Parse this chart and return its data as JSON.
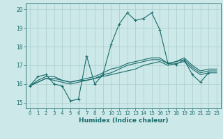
{
  "xlabel": "Humidex (Indice chaleur)",
  "background_color": "#cce8e8",
  "grid_color": "#aacccc",
  "line_color": "#1a6b6b",
  "xlim": [
    -0.5,
    23.5
  ],
  "ylim": [
    14.7,
    20.3
  ],
  "yticks": [
    15,
    16,
    17,
    18,
    19,
    20
  ],
  "xticks": [
    0,
    1,
    2,
    3,
    4,
    5,
    6,
    7,
    8,
    9,
    10,
    11,
    12,
    13,
    14,
    15,
    16,
    17,
    18,
    19,
    20,
    21,
    22,
    23
  ],
  "series": [
    [
      15.9,
      16.4,
      16.5,
      16.0,
      15.9,
      15.1,
      15.2,
      17.5,
      16.0,
      16.5,
      18.1,
      19.2,
      19.8,
      19.4,
      19.5,
      19.8,
      18.9,
      17.1,
      17.05,
      17.3,
      16.5,
      16.1,
      16.6,
      null
    ],
    [
      15.9,
      16.1,
      16.3,
      16.2,
      16.1,
      16.0,
      16.1,
      16.2,
      16.3,
      16.4,
      16.5,
      16.6,
      16.7,
      16.8,
      17.0,
      17.1,
      17.2,
      17.0,
      17.1,
      17.2,
      16.8,
      16.5,
      16.6,
      16.6
    ],
    [
      15.9,
      16.1,
      16.3,
      16.3,
      16.2,
      16.1,
      16.2,
      16.2,
      16.3,
      16.5,
      16.6,
      16.8,
      17.0,
      17.1,
      17.2,
      17.3,
      17.3,
      17.1,
      17.2,
      17.3,
      16.9,
      16.6,
      16.7,
      16.7
    ],
    [
      15.9,
      16.2,
      16.4,
      16.4,
      16.2,
      16.1,
      16.2,
      16.3,
      16.4,
      16.6,
      16.8,
      16.9,
      17.1,
      17.2,
      17.3,
      17.4,
      17.4,
      17.1,
      17.2,
      17.4,
      17.0,
      16.7,
      16.8,
      16.8
    ]
  ]
}
